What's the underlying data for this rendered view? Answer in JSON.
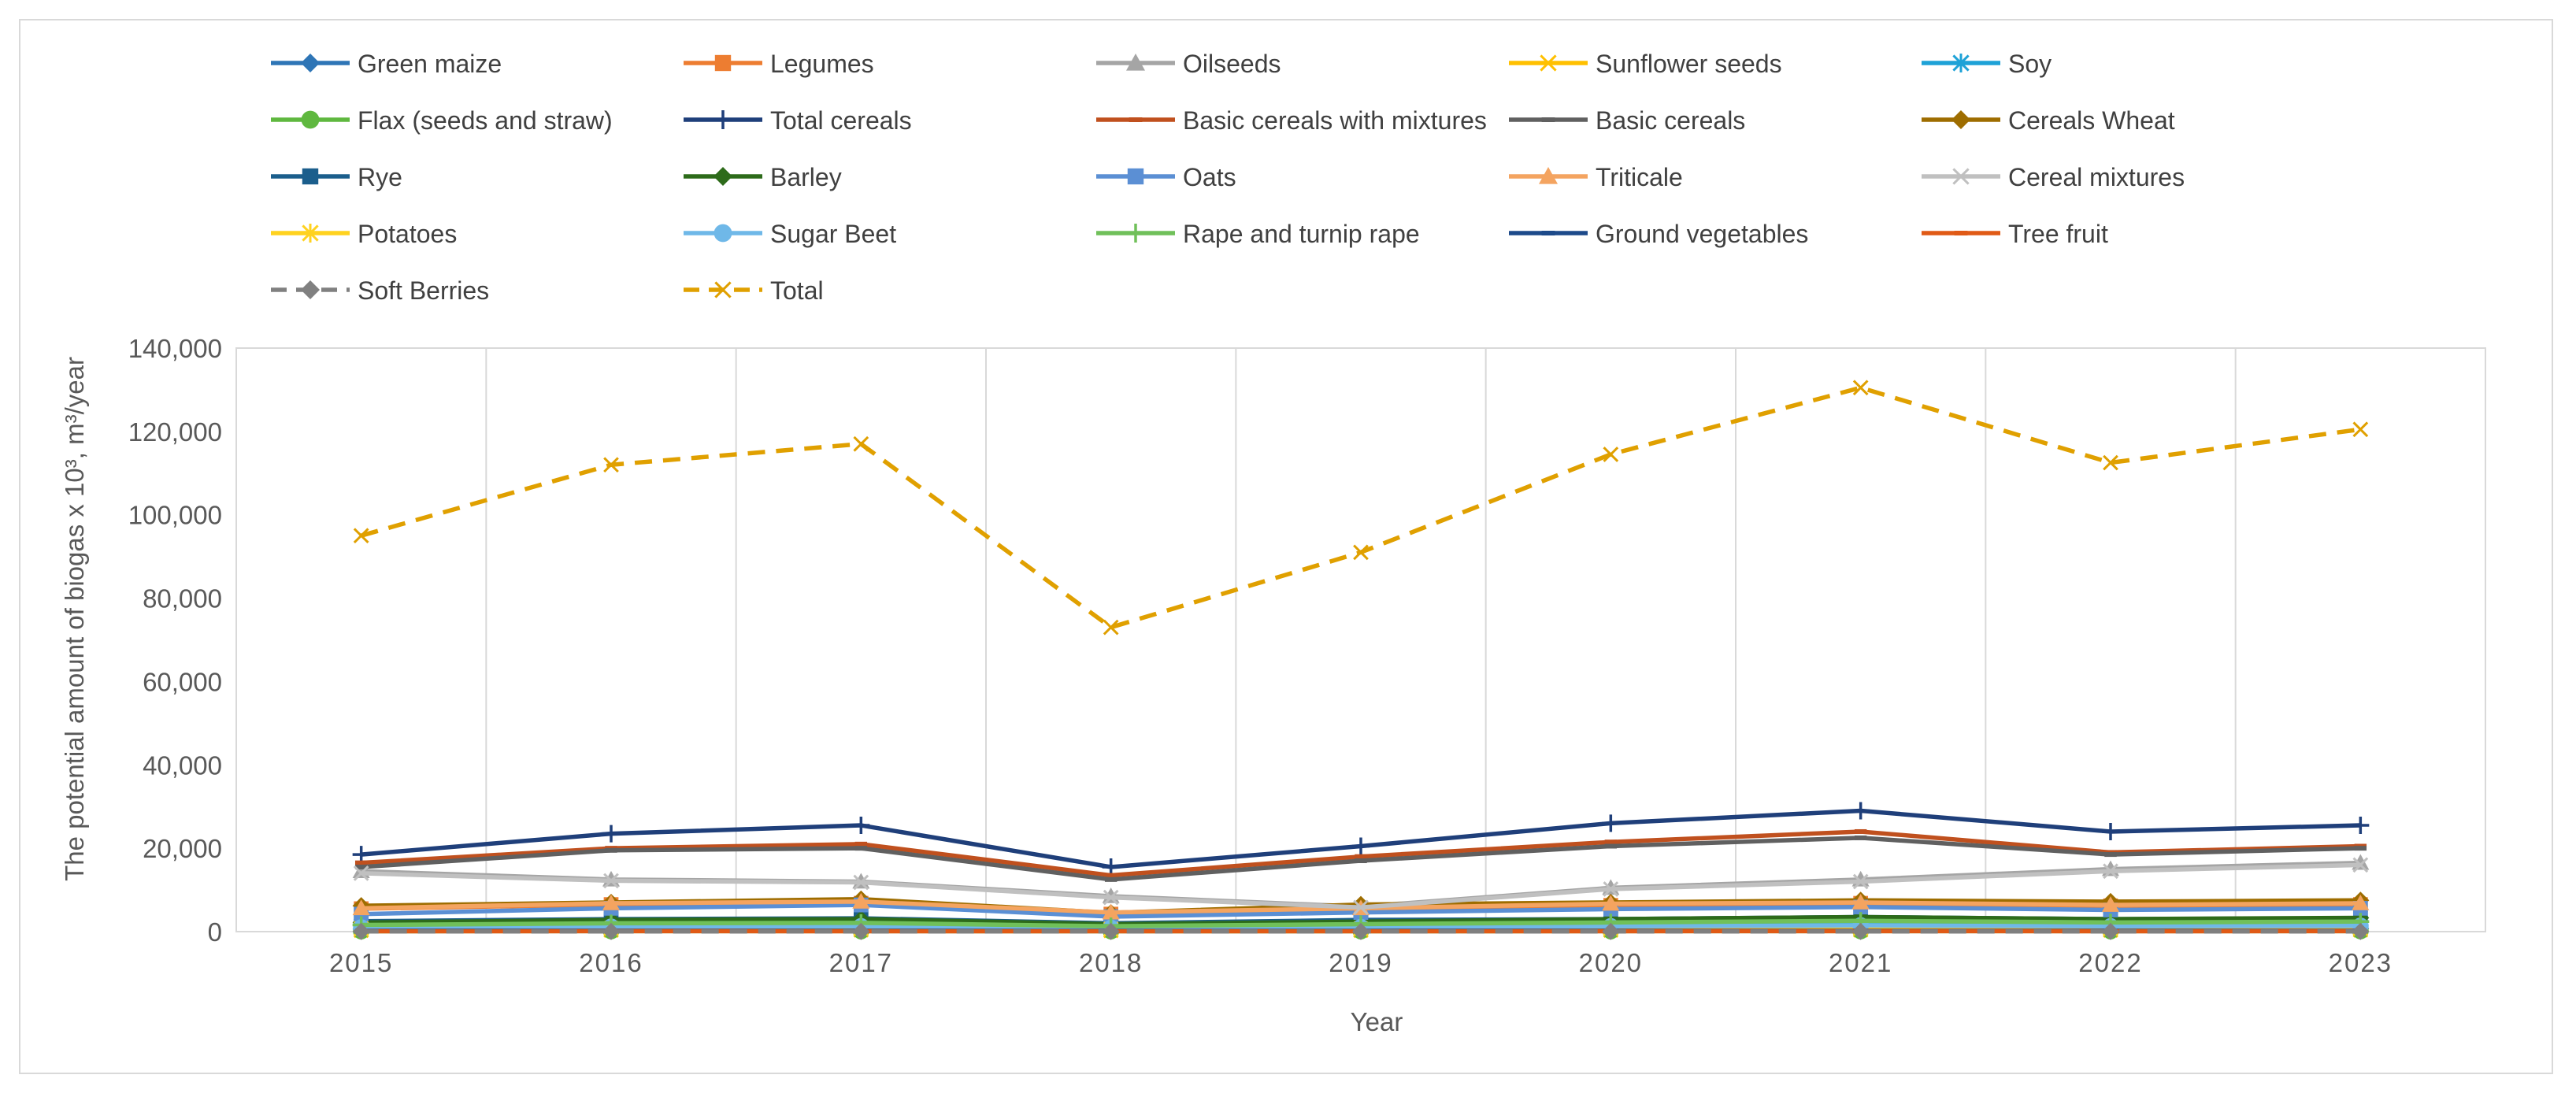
{
  "chart_data": {
    "type": "line",
    "title": "",
    "xlabel": "Year",
    "ylabel": "The potential amount of biogas  x 10³,  m³/year",
    "ylim": [
      0,
      140000
    ],
    "yticks": [
      0,
      20000,
      40000,
      60000,
      80000,
      100000,
      120000,
      140000
    ],
    "ytick_labels": [
      "0",
      "20,000",
      "40,000",
      "60,000",
      "80,000",
      "100,000",
      "120,000",
      "140,000"
    ],
    "categories": [
      "2015",
      "2016",
      "2017",
      "2018",
      "2019",
      "2020",
      "2021",
      "2022",
      "2023"
    ],
    "grid": "vertical",
    "legend_position": "top",
    "series": [
      {
        "name": "Green maize",
        "color": "#2e75b6",
        "marker": "diamond",
        "dash": "solid",
        "values": [
          600,
          700,
          750,
          500,
          650,
          700,
          800,
          700,
          750
        ]
      },
      {
        "name": "Legumes",
        "color": "#ed7d31",
        "marker": "square",
        "dash": "solid",
        "values": [
          5500,
          6500,
          6800,
          4200,
          5200,
          6300,
          6800,
          6200,
          6500
        ]
      },
      {
        "name": "Oilseeds",
        "color": "#a5a5a5",
        "marker": "triangle",
        "dash": "solid",
        "values": [
          14500,
          12500,
          12000,
          8500,
          6000,
          10500,
          12500,
          15000,
          16500
        ]
      },
      {
        "name": "Sunflower seeds",
        "color": "#ffc000",
        "marker": "x",
        "dash": "solid",
        "values": [
          300,
          350,
          400,
          250,
          300,
          350,
          400,
          350,
          400
        ]
      },
      {
        "name": "Soy",
        "color": "#1ea2d7",
        "marker": "asterisk",
        "dash": "solid",
        "values": [
          1500,
          1800,
          1900,
          1200,
          1600,
          2000,
          2300,
          2000,
          2200
        ]
      },
      {
        "name": "Flax (seeds and straw)",
        "color": "#5fb83f",
        "marker": "circle",
        "dash": "solid",
        "values": [
          100,
          120,
          110,
          90,
          100,
          110,
          120,
          110,
          120
        ]
      },
      {
        "name": "Total cereals",
        "color": "#1f3f7a",
        "marker": "plus",
        "dash": "solid",
        "values": [
          18500,
          23500,
          25500,
          15500,
          20500,
          26000,
          29000,
          24000,
          25500
        ]
      },
      {
        "name": "Basic cereals with mixtures",
        "color": "#c0501e",
        "marker": "dash",
        "dash": "solid",
        "values": [
          16500,
          20000,
          21000,
          13500,
          18000,
          21500,
          24000,
          19000,
          20500
        ]
      },
      {
        "name": "Basic cereals",
        "color": "#606060",
        "marker": "dash",
        "dash": "solid",
        "values": [
          15500,
          19500,
          20000,
          12500,
          17000,
          20500,
          22500,
          18500,
          20000
        ]
      },
      {
        "name": "Cereals Wheat",
        "color": "#9e6d00",
        "marker": "diamond",
        "dash": "solid",
        "values": [
          6200,
          7000,
          7800,
          4500,
          6500,
          7000,
          7500,
          7200,
          7500
        ]
      },
      {
        "name": "Rye",
        "color": "#1b5e8c",
        "marker": "square",
        "dash": "solid",
        "values": [
          2500,
          3000,
          3200,
          2000,
          2800,
          3000,
          3500,
          3000,
          3200
        ]
      },
      {
        "name": "Barley",
        "color": "#2d6b1a",
        "marker": "diamond",
        "dash": "solid",
        "values": [
          2200,
          2800,
          3000,
          1800,
          2400,
          3000,
          3500,
          3000,
          3300
        ]
      },
      {
        "name": "Oats",
        "color": "#5b8fd4",
        "marker": "square",
        "dash": "solid",
        "values": [
          4200,
          5600,
          6400,
          3600,
          4600,
          5400,
          5900,
          5200,
          5600
        ]
      },
      {
        "name": "Triticale",
        "color": "#f4a460",
        "marker": "triangle",
        "dash": "solid",
        "values": [
          5600,
          6800,
          7200,
          4600,
          5600,
          6700,
          7000,
          6400,
          6800
        ]
      },
      {
        "name": "Cereal mixtures",
        "color": "#c0c0c0",
        "marker": "x",
        "dash": "solid",
        "values": [
          14000,
          12200,
          11800,
          8200,
          5800,
          10200,
          12000,
          14500,
          16000
        ]
      },
      {
        "name": "Potatoes",
        "color": "#ffd21f",
        "marker": "asterisk",
        "dash": "solid",
        "values": [
          700,
          800,
          750,
          600,
          700,
          800,
          850,
          750,
          800
        ]
      },
      {
        "name": "Sugar Beet",
        "color": "#6fb8e8",
        "marker": "circle",
        "dash": "solid",
        "values": [
          1000,
          1200,
          1300,
          900,
          1100,
          1300,
          1500,
          1300,
          1400
        ]
      },
      {
        "name": "Rape and turnip rape",
        "color": "#70c05a",
        "marker": "plus",
        "dash": "solid",
        "values": [
          1600,
          2000,
          2100,
          1300,
          1800,
          2200,
          2600,
          2200,
          2400
        ]
      },
      {
        "name": "Ground vegetables",
        "color": "#1d4a8a",
        "marker": "dash",
        "dash": "solid",
        "values": [
          200,
          220,
          210,
          190,
          200,
          210,
          220,
          210,
          215
        ]
      },
      {
        "name": "Tree fruit",
        "color": "#e05a16",
        "marker": "dash",
        "dash": "solid",
        "values": [
          100,
          110,
          105,
          95,
          100,
          105,
          110,
          105,
          108
        ]
      },
      {
        "name": "Soft Berries",
        "color": "#808080",
        "marker": "diamond",
        "dash": "dashed",
        "values": [
          50,
          55,
          52,
          48,
          50,
          52,
          55,
          52,
          54
        ]
      },
      {
        "name": "Total",
        "color": "#e0a000",
        "marker": "x",
        "dash": "dashed",
        "values": [
          95000,
          112000,
          117000,
          73000,
          91000,
          114500,
          130500,
          112500,
          120500
        ]
      }
    ]
  }
}
